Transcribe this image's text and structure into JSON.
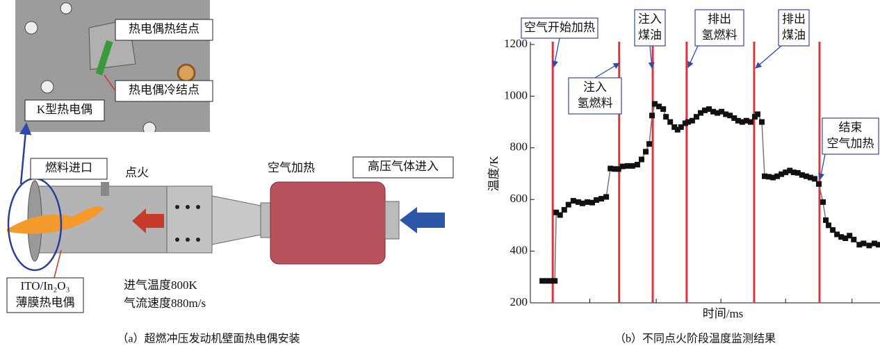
{
  "panel_a": {
    "labels": {
      "hot_junction": "热电偶热结点",
      "cold_junction": "热电偶冷结点",
      "k_thermocouple": "K型热电偶",
      "fuel_inlet": "燃料进口",
      "ignition": "点火",
      "air_heating": "空气加热",
      "gas_inlet": "高压气体进入",
      "film_thermocouple": [
        "ITO/In₂O₃",
        "薄膜热电偶"
      ],
      "inlet_temperature": "进气温度800K",
      "flow_speed": "气流速度880m/s"
    },
    "caption": "（a）超燃冲压发动机壁面热电偶安装"
  },
  "chart_data": {
    "type": "line",
    "caption": "（b）不同点火阶段温度监测结果",
    "xlabel": "时间/ms",
    "ylabel": "温度/K",
    "xlim": [
      0,
      100
    ],
    "xticks": [
      17,
      36,
      54.5,
      73,
      92
    ],
    "ylim": [
      200,
      1200
    ],
    "yticks": [
      200,
      400,
      600,
      800,
      1000,
      1200
    ],
    "color": "#111111",
    "line_color": "#777777",
    "event_color": "#d9363e",
    "x": [
      3.4,
      4.6,
      5.8,
      7.0,
      7.4,
      8.5,
      9.7,
      10.9,
      12.3,
      13.7,
      14.9,
      16.3,
      17.7,
      18.9,
      20.3,
      21.7,
      22.9,
      24.1,
      25.2,
      26.4,
      27.8,
      29.2,
      30.6,
      31.8,
      33.0,
      34.0,
      34.8,
      35.6,
      36.8,
      38.0,
      38.8,
      40.0,
      41.2,
      42.1,
      43.1,
      44.3,
      45.1,
      46.3,
      47.5,
      48.7,
      49.9,
      51.1,
      52.3,
      53.5,
      54.7,
      55.9,
      57.1,
      58.3,
      59.4,
      60.6,
      61.8,
      63.0,
      64.2,
      65.0,
      66.2,
      67.0,
      68.2,
      69.4,
      70.6,
      71.8,
      73.0,
      74.2,
      75.3,
      76.5,
      77.7,
      78.9,
      80.1,
      81.3,
      82.5,
      83.7,
      84.5,
      85.3,
      86.5,
      87.7,
      88.9,
      90.1,
      91.3,
      92.5,
      94.1,
      95.3,
      96.9,
      98.4,
      99.6
    ],
    "values": [
      285,
      285,
      285,
      285,
      550,
      540,
      560,
      580,
      595,
      590,
      585,
      590,
      588,
      598,
      603,
      610,
      720,
      718,
      718,
      728,
      730,
      730,
      735,
      755,
      785,
      815,
      925,
      970,
      960,
      950,
      920,
      900,
      880,
      870,
      880,
      895,
      900,
      905,
      920,
      935,
      945,
      950,
      940,
      935,
      940,
      930,
      925,
      915,
      905,
      900,
      905,
      900,
      920,
      930,
      900,
      690,
      688,
      685,
      690,
      698,
      705,
      712,
      705,
      703,
      695,
      690,
      685,
      680,
      660,
      590,
      520,
      500,
      482,
      465,
      455,
      450,
      460,
      445,
      425,
      430,
      422,
      430,
      425
    ],
    "events": [
      {
        "x": 6.4,
        "label": [
          "空气开始加热"
        ]
      },
      {
        "x": 25.4,
        "label": [
          "注入",
          "氢燃料"
        ]
      },
      {
        "x": 35,
        "label": [
          "注入",
          "煤油"
        ]
      },
      {
        "x": 44.7,
        "label": [
          "排出",
          "氢燃料"
        ]
      },
      {
        "x": 64,
        "label": [
          "排出",
          "煤油"
        ]
      },
      {
        "x": 82.7,
        "label": [
          "结束",
          "空气加热"
        ]
      }
    ]
  }
}
